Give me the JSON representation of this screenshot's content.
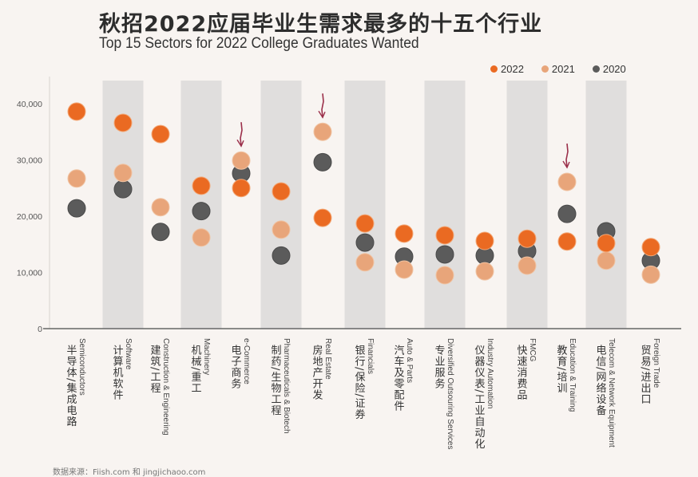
{
  "title": {
    "cn": "秋招2022应届毕业生需求最多的十五个行业",
    "en": "Top 15 Sectors for 2022 College Graduates Wanted"
  },
  "legend": [
    {
      "label": "2022",
      "color": "#ea6a22"
    },
    {
      "label": "2021",
      "color": "#e8a57a"
    },
    {
      "label": "2020",
      "color": "#5b5b5b"
    }
  ],
  "source": "数据来源：Fiish.com 和 jingjichaoo.com",
  "chart_data": {
    "type": "scatter",
    "title": "Top 15 Sectors for 2022 College Graduates Wanted",
    "xlabel": "",
    "ylabel": "",
    "ylim": [
      0,
      44000
    ],
    "yticks": [
      0,
      10000,
      20000,
      30000,
      40000
    ],
    "ytick_labels": [
      "0",
      "10,000",
      "20,000",
      "30,000",
      "40,000"
    ],
    "grid": false,
    "legend_position": "top-right",
    "alternating_bands": true,
    "categories": [
      {
        "cn": "半导体/集成电路",
        "en": "Semiconductors"
      },
      {
        "cn": "计算机软件",
        "en": "Software"
      },
      {
        "cn": "建筑/工程",
        "en": "Construction & Engineering"
      },
      {
        "cn": "机械/重工",
        "en": "Machinery"
      },
      {
        "cn": "电子商务",
        "en": "e-Commerce"
      },
      {
        "cn": "制药/生物工程",
        "en": "Pharmaceuticals & Biotech"
      },
      {
        "cn": "房地产开发",
        "en": "Real Estate"
      },
      {
        "cn": "银行/保险/证券",
        "en": "Financials"
      },
      {
        "cn": "汽车及零配件",
        "en": "Auto & Parts"
      },
      {
        "cn": "专业服务",
        "en": "Diversified Outsouring Services"
      },
      {
        "cn": "仪器仪表/工业自动化",
        "en": "Industry Automation"
      },
      {
        "cn": "快速消费品",
        "en": "FMCG"
      },
      {
        "cn": "教育/培训",
        "en": "Education & Training"
      },
      {
        "cn": "电信/网络设备",
        "en": "Telecom & Network Equipment"
      },
      {
        "cn": "贸易/进出口",
        "en": "Foreign Trade"
      }
    ],
    "series": [
      {
        "name": "2020",
        "color": "#5b5b5b",
        "values": [
          21400,
          24800,
          17200,
          20900,
          27600,
          13000,
          29600,
          15300,
          12800,
          13200,
          13000,
          13800,
          20400,
          17300,
          12100
        ]
      },
      {
        "name": "2021",
        "color": "#e8a57a",
        "values": [
          26700,
          27700,
          21600,
          16200,
          29900,
          17600,
          35000,
          11800,
          10500,
          9500,
          10200,
          11200,
          26100,
          12100,
          9600
        ]
      },
      {
        "name": "2022",
        "color": "#ea6a22",
        "values": [
          38600,
          36600,
          34600,
          25400,
          25000,
          24400,
          19700,
          18700,
          16900,
          16600,
          15600,
          16000,
          15500,
          15200,
          14500
        ]
      }
    ],
    "annotations": [
      {
        "type": "arrow-down",
        "category_index": 4
      },
      {
        "type": "arrow-down",
        "category_index": 6
      },
      {
        "type": "arrow-down",
        "category_index": 12
      }
    ]
  }
}
